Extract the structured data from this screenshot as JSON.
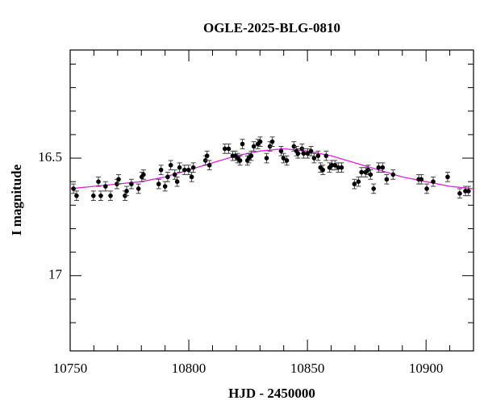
{
  "chart_data": {
    "type": "scatter",
    "title": "OGLE-2025-BLG-0810",
    "xlabel": "HJD - 2450000",
    "ylabel": "I magnitude",
    "xlim": [
      10750,
      10920
    ],
    "xticks": [
      10750,
      10800,
      10850,
      10900
    ],
    "xminorticks": [
      10760,
      10770,
      10780,
      10790,
      10810,
      10820,
      10830,
      10840,
      10860,
      10870,
      10880,
      10890,
      10910
    ],
    "ylim": [
      17.32,
      16.04
    ],
    "yticks": [
      16.5,
      17
    ],
    "yminorticks": [
      16.1,
      16.2,
      16.3,
      16.4,
      16.6,
      16.7,
      16.8,
      16.9,
      17.1,
      17.2
    ],
    "series": [
      {
        "type": "scatter",
        "color": "#000000",
        "x": [
          10751.4,
          10752.7,
          10759.8,
          10761.9,
          10762.9,
          10764.9,
          10767.0,
          10769.7,
          10770.4,
          10773.1,
          10773.8,
          10775.8,
          10778.8,
          10780.2,
          10780.9,
          10787.3,
          10788.3,
          10790.0,
          10791.1,
          10792.4,
          10794.1,
          10795.1,
          10796.1,
          10798.2,
          10799.9,
          10801.2,
          10801.9,
          10807.0,
          10807.7,
          10808.7,
          10815.2,
          10816.8,
          10818.5,
          10819.6,
          10820.6,
          10821.6,
          10822.6,
          10824.7,
          10825.3,
          10826.3,
          10827.4,
          10829.1,
          10830.1,
          10832.8,
          10834.2,
          10835.2,
          10838.9,
          10839.9,
          10841.3,
          10844.3,
          10845.4,
          10846.0,
          10847.7,
          10848.4,
          10850.1,
          10851.5,
          10852.8,
          10854.5,
          10855.5,
          10856.5,
          10857.9,
          10859.3,
          10860.3,
          10861.6,
          10863.0,
          10864.4,
          10869.8,
          10871.5,
          10872.8,
          10874.5,
          10875.6,
          10876.6,
          10877.9,
          10880.0,
          10881.7,
          10883.4,
          10886.1,
          10896.9,
          10898.0,
          10900.3,
          10903.0,
          10909.1,
          10914.2,
          10916.6,
          10917.9
        ],
        "values": [
          16.63,
          16.66,
          16.66,
          16.6,
          16.66,
          16.62,
          16.66,
          16.61,
          16.59,
          16.66,
          16.64,
          16.61,
          16.63,
          16.58,
          16.57,
          16.61,
          16.55,
          16.62,
          16.58,
          16.53,
          16.57,
          16.6,
          16.54,
          16.55,
          16.55,
          16.58,
          16.54,
          16.51,
          16.49,
          16.53,
          16.46,
          16.46,
          16.49,
          16.49,
          16.5,
          16.51,
          16.44,
          16.51,
          16.5,
          16.49,
          16.45,
          16.44,
          16.43,
          16.5,
          16.45,
          16.43,
          16.47,
          16.5,
          16.51,
          16.45,
          16.47,
          16.48,
          16.46,
          16.48,
          16.48,
          16.47,
          16.5,
          16.49,
          16.54,
          16.55,
          16.49,
          16.54,
          16.53,
          16.53,
          16.54,
          16.54,
          16.61,
          16.6,
          16.56,
          16.56,
          16.55,
          16.57,
          16.63,
          16.54,
          16.54,
          16.59,
          16.57,
          16.59,
          16.59,
          16.63,
          16.6,
          16.58,
          16.65,
          16.64,
          16.64
        ],
        "errors": [
          0.02,
          0.02,
          0.02,
          0.02,
          0.02,
          0.02,
          0.02,
          0.02,
          0.02,
          0.02,
          0.02,
          0.02,
          0.02,
          0.02,
          0.02,
          0.02,
          0.02,
          0.02,
          0.02,
          0.02,
          0.02,
          0.02,
          0.02,
          0.02,
          0.02,
          0.02,
          0.02,
          0.02,
          0.02,
          0.02,
          0.02,
          0.02,
          0.02,
          0.02,
          0.02,
          0.02,
          0.02,
          0.02,
          0.02,
          0.02,
          0.02,
          0.02,
          0.02,
          0.02,
          0.02,
          0.02,
          0.02,
          0.02,
          0.02,
          0.02,
          0.02,
          0.02,
          0.02,
          0.02,
          0.02,
          0.02,
          0.02,
          0.02,
          0.02,
          0.02,
          0.02,
          0.02,
          0.02,
          0.02,
          0.02,
          0.02,
          0.02,
          0.02,
          0.02,
          0.02,
          0.02,
          0.02,
          0.02,
          0.02,
          0.02,
          0.02,
          0.02,
          0.02,
          0.02,
          0.02,
          0.02,
          0.02,
          0.02,
          0.02,
          0.02
        ]
      },
      {
        "type": "line",
        "color": "#e020e0",
        "x": [
          10750,
          10760,
          10770,
          10780,
          10790,
          10800,
          10810,
          10820,
          10830,
          10840,
          10850,
          10860,
          10870,
          10880,
          10890,
          10900,
          10910,
          10920
        ],
        "values": [
          16.63,
          16.62,
          16.61,
          16.6,
          16.58,
          16.55,
          16.52,
          16.49,
          16.47,
          16.46,
          16.47,
          16.49,
          16.52,
          16.55,
          16.58,
          16.6,
          16.62,
          16.63
        ]
      }
    ]
  }
}
